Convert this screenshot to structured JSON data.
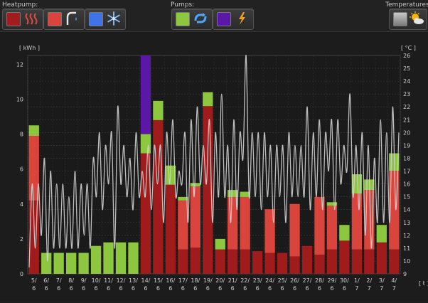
{
  "toolbar": {
    "heatpump_label": "Heatpump:",
    "pumps_label": "Pumps:",
    "temperatures_label": "Temperatures:",
    "heatpump_buttons": [
      {
        "name": "heating",
        "color": "#a11d1d",
        "icon": "heat-waves-icon"
      },
      {
        "name": "hot-water",
        "color": "#d9443c",
        "icon": "tap-icon"
      },
      {
        "name": "cooling",
        "color": "#3e74e8",
        "icon": "snowflake-icon"
      }
    ],
    "pump_buttons": [
      {
        "name": "circulation",
        "color": "#8dc63f",
        "icon": "pump-icon"
      },
      {
        "name": "ground",
        "color": "#5b17a8",
        "icon": "lightning-icon"
      }
    ],
    "temperature_buttons": [
      {
        "name": "outdoor",
        "color": "#9a9a9a",
        "icon": "sun-cloud-icon"
      }
    ]
  },
  "chart_data": {
    "type": "bar",
    "left_unit": "[ kWh ]",
    "right_unit": "[ °C ]",
    "x_unit": "[ t ]",
    "ylim": [
      0,
      12.5
    ],
    "y2lim": [
      9,
      26
    ],
    "yticks": [
      0,
      2,
      4,
      6,
      8,
      10,
      12
    ],
    "y2ticks": [
      9,
      10,
      11,
      12,
      13,
      14,
      15,
      16,
      17,
      18,
      19,
      20,
      21,
      22,
      23,
      24,
      25,
      26
    ],
    "categories": [
      [
        "5/",
        "6"
      ],
      [
        "6/",
        "6"
      ],
      [
        "7/",
        "6"
      ],
      [
        "8/",
        "6"
      ],
      [
        "9/",
        "6"
      ],
      [
        "10/",
        "6"
      ],
      [
        "11/",
        "6"
      ],
      [
        "12/",
        "6"
      ],
      [
        "13/",
        "6"
      ],
      [
        "14/",
        "6"
      ],
      [
        "15/",
        "6"
      ],
      [
        "16/",
        "6"
      ],
      [
        "17/",
        "6"
      ],
      [
        "18/",
        "6"
      ],
      [
        "19/",
        "6"
      ],
      [
        "20/",
        "6"
      ],
      [
        "21/",
        "6"
      ],
      [
        "22/",
        "6"
      ],
      [
        "23/",
        "6"
      ],
      [
        "24/",
        "6"
      ],
      [
        "25/",
        "6"
      ],
      [
        "26/",
        "6"
      ],
      [
        "27/",
        "6"
      ],
      [
        "28/",
        "6"
      ],
      [
        "29/",
        "6"
      ],
      [
        "30/",
        "6"
      ],
      [
        "1/",
        "7"
      ],
      [
        "2/",
        "7"
      ],
      [
        "3/",
        "7"
      ],
      [
        "4/",
        "7"
      ]
    ],
    "series": [
      {
        "name": "heating",
        "color": "#a01c1c",
        "values": [
          4.2,
          0,
          0,
          0,
          0,
          0,
          0,
          0,
          0,
          6.9,
          8.8,
          5.1,
          1.4,
          1.5,
          9.6,
          1.4,
          1.4,
          1.4,
          1.3,
          1.2,
          1.2,
          1.0,
          1.6,
          1.1,
          1.4,
          1.9,
          1.4,
          1.4,
          1.8,
          1.4
        ]
      },
      {
        "name": "hot water",
        "color": "#d9443c",
        "values": [
          3.7,
          0,
          0,
          0,
          0,
          0,
          0,
          0,
          0,
          0,
          0,
          0,
          2.8,
          3.5,
          0,
          0,
          3.0,
          3.0,
          0,
          2.5,
          0,
          3.0,
          0,
          3.3,
          2.5,
          0,
          3.2,
          3.4,
          0,
          4.5
        ]
      },
      {
        "name": "circulation pump",
        "color": "#8dc63f",
        "values": [
          0.6,
          1.2,
          1.2,
          1.2,
          1.2,
          1.6,
          1.8,
          1.8,
          1.8,
          1.1,
          1.1,
          1.1,
          0.2,
          0.2,
          0.8,
          0.6,
          0.4,
          0.3,
          0,
          0,
          0,
          0,
          0,
          0,
          0.2,
          0.9,
          1.1,
          0.6,
          1.0,
          1.0
        ]
      },
      {
        "name": "ground pump",
        "color": "#5b17a8",
        "values": [
          0,
          0,
          0,
          0,
          0,
          0,
          0,
          0,
          0,
          4.5,
          0,
          0,
          0,
          0,
          0,
          0,
          0,
          0,
          0,
          0,
          0,
          0,
          0,
          0,
          0,
          0,
          0,
          0,
          0,
          0
        ]
      }
    ],
    "temperature": {
      "name": "outdoor temperature",
      "color": "#d0d0d0",
      "values": [
        9.5,
        16,
        11,
        16,
        12,
        18,
        10,
        17,
        11,
        16,
        11,
        16,
        11,
        15,
        11,
        17,
        11,
        16,
        12,
        16,
        11,
        18,
        15,
        20,
        14,
        19,
        16,
        20,
        11,
        22,
        16,
        19,
        15,
        18,
        14,
        20,
        15,
        17,
        15,
        19,
        14,
        19,
        16,
        19,
        13,
        20,
        16,
        21,
        15,
        17,
        16,
        20,
        13,
        21,
        15,
        22,
        16,
        19,
        16,
        21,
        13,
        20,
        15,
        23,
        15,
        19,
        13,
        21,
        14,
        20,
        18,
        26,
        15,
        20,
        15,
        20,
        14,
        20,
        15,
        19,
        13,
        19,
        15,
        19,
        13,
        20,
        15,
        19,
        15,
        19,
        15,
        22,
        14,
        20,
        15,
        21,
        14,
        20,
        17,
        21,
        14,
        21,
        16,
        19,
        17,
        23,
        15,
        19,
        14,
        20,
        12,
        19,
        11,
        18,
        13,
        21,
        13,
        20,
        13,
        22,
        14,
        20
      ]
    }
  }
}
